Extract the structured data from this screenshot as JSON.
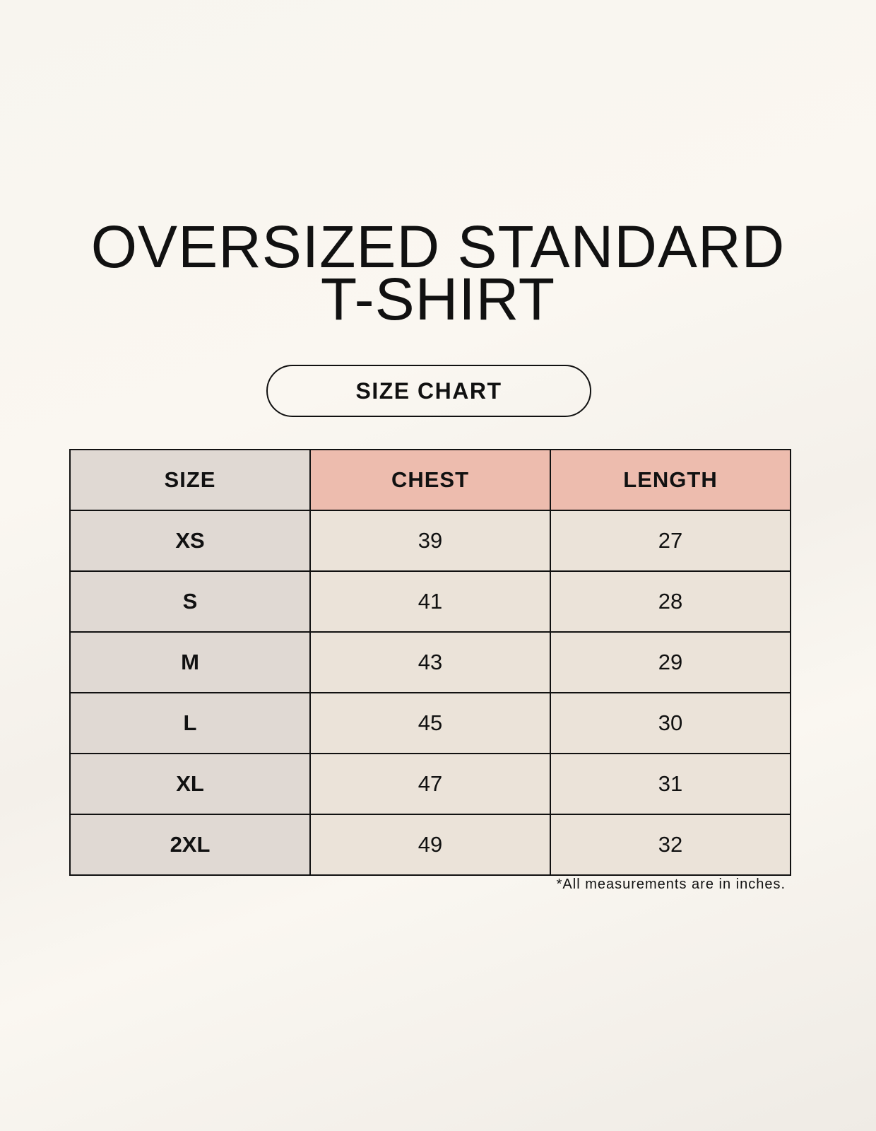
{
  "title_line1": "OVERSIZED STANDARD",
  "title_line2": "T-SHIRT",
  "subtitle_pill": "SIZE CHART",
  "table": {
    "headers": [
      "SIZE",
      "CHEST",
      "LENGTH"
    ],
    "rows": [
      [
        "XS",
        "39",
        "27"
      ],
      [
        "S",
        "41",
        "28"
      ],
      [
        "M",
        "43",
        "29"
      ],
      [
        "L",
        "45",
        "30"
      ],
      [
        "XL",
        "47",
        "31"
      ],
      [
        "2XL",
        "49",
        "32"
      ]
    ]
  },
  "footnote": "*All measurements are in inches.",
  "colors": {
    "size_column": "#e0d9d3",
    "header_accent": "#edbcae",
    "value_cells": "#ebe3d9"
  }
}
